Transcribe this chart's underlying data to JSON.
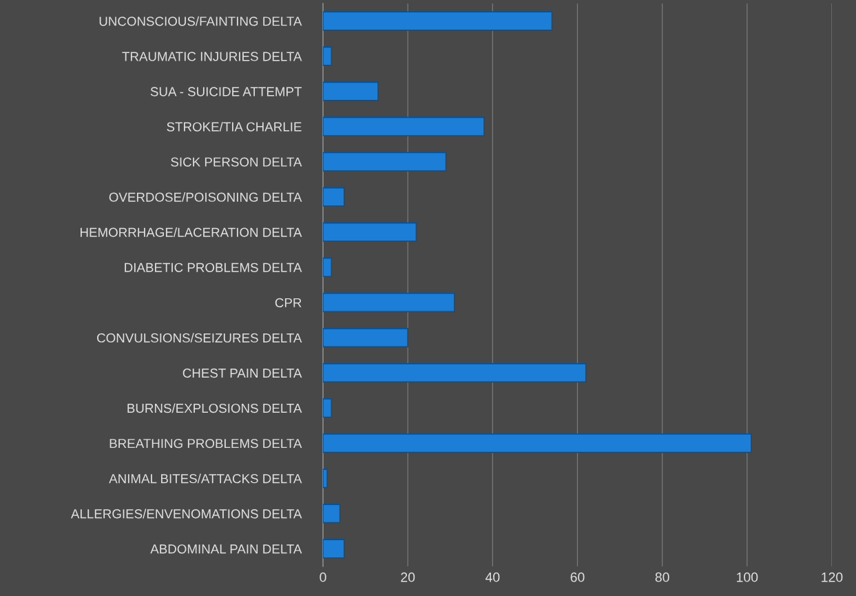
{
  "chart_data": {
    "type": "bar",
    "orientation": "horizontal",
    "categories": [
      "UNCONSCIOUS/FAINTING DELTA",
      "TRAUMATIC INJURIES DELTA",
      "SUA - SUICIDE ATTEMPT",
      "STROKE/TIA CHARLIE",
      "SICK PERSON DELTA",
      "OVERDOSE/POISONING DELTA",
      "HEMORRHAGE/LACERATION DELTA",
      "DIABETIC PROBLEMS DELTA",
      "CPR",
      "CONVULSIONS/SEIZURES DELTA",
      "CHEST PAIN DELTA",
      "BURNS/EXPLOSIONS DELTA",
      "BREATHING PROBLEMS DELTA",
      "ANIMAL BITES/ATTACKS DELTA",
      "ALLERGIES/ENVENOMATIONS DELTA",
      "ABDOMINAL PAIN DELTA"
    ],
    "values": [
      54,
      2,
      13,
      38,
      29,
      5,
      22,
      2,
      31,
      20,
      62,
      2,
      101,
      1,
      4,
      5
    ],
    "color": "#1c7ed6",
    "xlim": [
      0,
      120
    ],
    "xticks": [
      0,
      20,
      40,
      60,
      80,
      100,
      120
    ],
    "grid": "x"
  }
}
